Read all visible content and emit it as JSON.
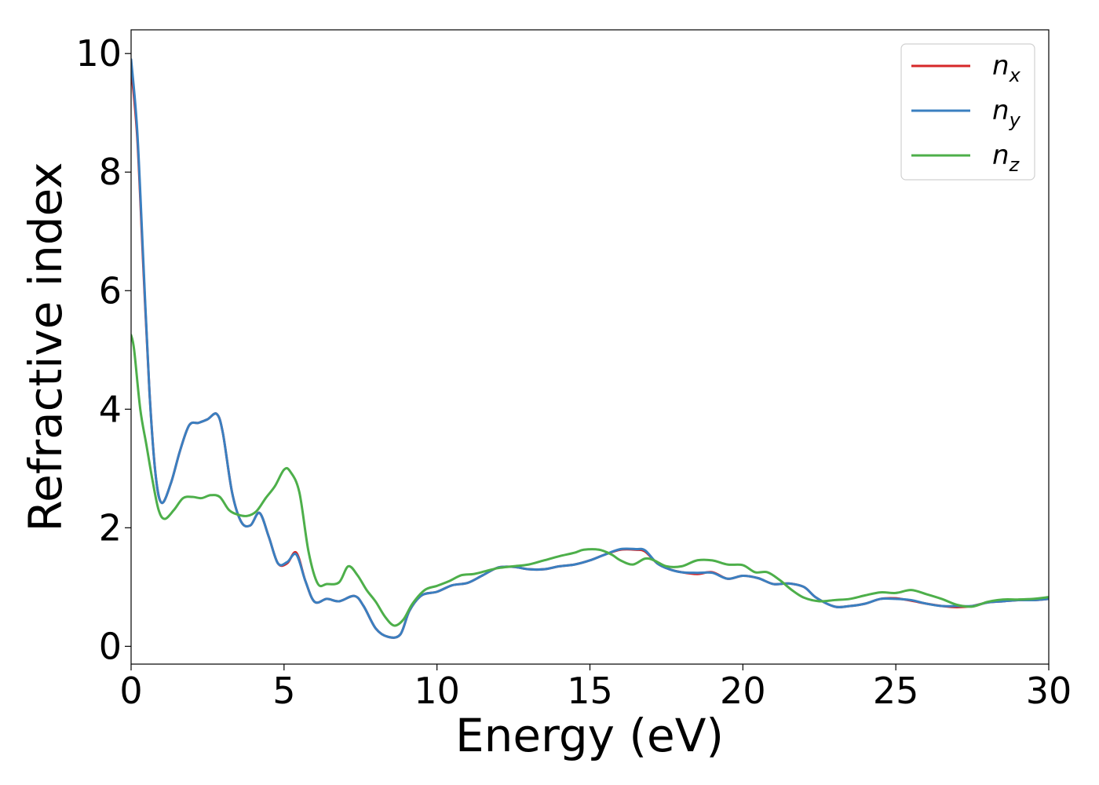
{
  "chart_data": {
    "type": "line",
    "xlabel": "Energy (eV)",
    "ylabel": "Refractive index",
    "xlim": [
      0,
      30
    ],
    "ylim": [
      -0.3,
      10.4
    ],
    "xticks": [
      0,
      5,
      10,
      15,
      20,
      25,
      30
    ],
    "yticks": [
      0,
      2,
      4,
      6,
      8,
      10
    ],
    "grid": false,
    "legend_position": "top-right",
    "series": [
      {
        "name": "n_x",
        "legend_base": "n",
        "legend_sub": "x",
        "color": "#d62728",
        "points": [
          [
            0,
            9.75
          ],
          [
            0.2,
            8.6
          ],
          [
            0.4,
            6.4
          ],
          [
            0.6,
            4.3
          ],
          [
            0.8,
            2.9
          ],
          [
            1,
            2.42
          ],
          [
            1.3,
            2.75
          ],
          [
            1.6,
            3.3
          ],
          [
            1.9,
            3.73
          ],
          [
            2.2,
            3.77
          ],
          [
            2.5,
            3.83
          ],
          [
            2.8,
            3.92
          ],
          [
            3.0,
            3.6
          ],
          [
            3.3,
            2.6
          ],
          [
            3.6,
            2.1
          ],
          [
            3.9,
            2.04
          ],
          [
            4.2,
            2.25
          ],
          [
            4.5,
            1.85
          ],
          [
            4.8,
            1.4
          ],
          [
            5.1,
            1.4
          ],
          [
            5.4,
            1.58
          ],
          [
            5.7,
            1.1
          ],
          [
            6.0,
            0.75
          ],
          [
            6.4,
            0.8
          ],
          [
            6.8,
            0.76
          ],
          [
            7.3,
            0.85
          ],
          [
            7.6,
            0.68
          ],
          [
            8.0,
            0.3
          ],
          [
            8.4,
            0.16
          ],
          [
            8.8,
            0.2
          ],
          [
            9.1,
            0.6
          ],
          [
            9.5,
            0.86
          ],
          [
            10,
            0.92
          ],
          [
            10.5,
            1.03
          ],
          [
            11,
            1.07
          ],
          [
            11.5,
            1.2
          ],
          [
            12,
            1.33
          ],
          [
            12.5,
            1.34
          ],
          [
            13,
            1.3
          ],
          [
            13.5,
            1.3
          ],
          [
            14,
            1.35
          ],
          [
            14.5,
            1.38
          ],
          [
            15,
            1.45
          ],
          [
            15.5,
            1.55
          ],
          [
            16,
            1.63
          ],
          [
            16.5,
            1.63
          ],
          [
            16.8,
            1.6
          ],
          [
            17.2,
            1.4
          ],
          [
            17.6,
            1.3
          ],
          [
            18,
            1.25
          ],
          [
            18.5,
            1.22
          ],
          [
            19,
            1.25
          ],
          [
            19.5,
            1.14
          ],
          [
            20,
            1.19
          ],
          [
            20.5,
            1.15
          ],
          [
            21,
            1.05
          ],
          [
            21.5,
            1.06
          ],
          [
            22,
            1.0
          ],
          [
            22.4,
            0.82
          ],
          [
            23,
            0.67
          ],
          [
            23.5,
            0.68
          ],
          [
            24,
            0.72
          ],
          [
            24.5,
            0.8
          ],
          [
            25,
            0.81
          ],
          [
            25.5,
            0.77
          ],
          [
            26,
            0.72
          ],
          [
            26.5,
            0.68
          ],
          [
            27,
            0.66
          ],
          [
            27.5,
            0.68
          ],
          [
            28,
            0.74
          ],
          [
            28.5,
            0.76
          ],
          [
            29,
            0.78
          ],
          [
            29.5,
            0.78
          ],
          [
            30,
            0.8
          ]
        ]
      },
      {
        "name": "n_y",
        "legend_base": "n",
        "legend_sub": "y",
        "color": "#3a7fc0",
        "points": [
          [
            0,
            9.9
          ],
          [
            0.2,
            8.7
          ],
          [
            0.4,
            6.5
          ],
          [
            0.6,
            4.3
          ],
          [
            0.8,
            2.9
          ],
          [
            1,
            2.42
          ],
          [
            1.3,
            2.75
          ],
          [
            1.6,
            3.3
          ],
          [
            1.9,
            3.73
          ],
          [
            2.2,
            3.77
          ],
          [
            2.5,
            3.83
          ],
          [
            2.8,
            3.92
          ],
          [
            3.0,
            3.6
          ],
          [
            3.3,
            2.6
          ],
          [
            3.6,
            2.1
          ],
          [
            3.9,
            2.04
          ],
          [
            4.2,
            2.25
          ],
          [
            4.5,
            1.85
          ],
          [
            4.8,
            1.4
          ],
          [
            5.1,
            1.42
          ],
          [
            5.4,
            1.55
          ],
          [
            5.7,
            1.1
          ],
          [
            6.0,
            0.75
          ],
          [
            6.4,
            0.8
          ],
          [
            6.8,
            0.76
          ],
          [
            7.3,
            0.85
          ],
          [
            7.6,
            0.68
          ],
          [
            8.0,
            0.3
          ],
          [
            8.4,
            0.16
          ],
          [
            8.8,
            0.2
          ],
          [
            9.1,
            0.6
          ],
          [
            9.5,
            0.86
          ],
          [
            10,
            0.92
          ],
          [
            10.5,
            1.03
          ],
          [
            11,
            1.07
          ],
          [
            11.5,
            1.2
          ],
          [
            12,
            1.33
          ],
          [
            12.5,
            1.34
          ],
          [
            13,
            1.3
          ],
          [
            13.5,
            1.3
          ],
          [
            14,
            1.35
          ],
          [
            14.5,
            1.38
          ],
          [
            15,
            1.45
          ],
          [
            15.5,
            1.55
          ],
          [
            16,
            1.64
          ],
          [
            16.5,
            1.64
          ],
          [
            16.8,
            1.62
          ],
          [
            17.2,
            1.4
          ],
          [
            17.6,
            1.3
          ],
          [
            18,
            1.25
          ],
          [
            18.5,
            1.24
          ],
          [
            19,
            1.24
          ],
          [
            19.5,
            1.14
          ],
          [
            20,
            1.19
          ],
          [
            20.5,
            1.15
          ],
          [
            21,
            1.05
          ],
          [
            21.5,
            1.06
          ],
          [
            22,
            1.0
          ],
          [
            22.4,
            0.82
          ],
          [
            23,
            0.67
          ],
          [
            23.5,
            0.68
          ],
          [
            24,
            0.72
          ],
          [
            24.5,
            0.8
          ],
          [
            25,
            0.8
          ],
          [
            25.5,
            0.78
          ],
          [
            26,
            0.72
          ],
          [
            26.5,
            0.68
          ],
          [
            27,
            0.68
          ],
          [
            27.5,
            0.68
          ],
          [
            28,
            0.74
          ],
          [
            28.5,
            0.76
          ],
          [
            29,
            0.78
          ],
          [
            29.5,
            0.78
          ],
          [
            30,
            0.8
          ]
        ]
      },
      {
        "name": "n_z",
        "legend_base": "n",
        "legend_sub": "z",
        "color": "#4daf4a",
        "points": [
          [
            0,
            5.25
          ],
          [
            0.1,
            5.0
          ],
          [
            0.3,
            4.0
          ],
          [
            0.5,
            3.4
          ],
          [
            0.7,
            2.8
          ],
          [
            0.9,
            2.3
          ],
          [
            1.1,
            2.15
          ],
          [
            1.4,
            2.3
          ],
          [
            1.7,
            2.5
          ],
          [
            2.0,
            2.52
          ],
          [
            2.3,
            2.5
          ],
          [
            2.6,
            2.55
          ],
          [
            2.9,
            2.52
          ],
          [
            3.2,
            2.3
          ],
          [
            3.5,
            2.22
          ],
          [
            3.8,
            2.2
          ],
          [
            4.1,
            2.28
          ],
          [
            4.4,
            2.5
          ],
          [
            4.7,
            2.7
          ],
          [
            5.0,
            2.98
          ],
          [
            5.2,
            2.95
          ],
          [
            5.5,
            2.6
          ],
          [
            5.8,
            1.6
          ],
          [
            6.1,
            1.06
          ],
          [
            6.4,
            1.05
          ],
          [
            6.8,
            1.08
          ],
          [
            7.1,
            1.35
          ],
          [
            7.4,
            1.2
          ],
          [
            7.7,
            0.95
          ],
          [
            8.0,
            0.75
          ],
          [
            8.3,
            0.5
          ],
          [
            8.6,
            0.35
          ],
          [
            8.9,
            0.45
          ],
          [
            9.2,
            0.72
          ],
          [
            9.6,
            0.95
          ],
          [
            10,
            1.02
          ],
          [
            10.4,
            1.1
          ],
          [
            10.8,
            1.2
          ],
          [
            11.2,
            1.22
          ],
          [
            11.6,
            1.27
          ],
          [
            12,
            1.32
          ],
          [
            12.5,
            1.35
          ],
          [
            13,
            1.38
          ],
          [
            13.5,
            1.45
          ],
          [
            14,
            1.52
          ],
          [
            14.5,
            1.58
          ],
          [
            14.8,
            1.63
          ],
          [
            15.3,
            1.63
          ],
          [
            15.7,
            1.55
          ],
          [
            16,
            1.45
          ],
          [
            16.4,
            1.38
          ],
          [
            16.8,
            1.48
          ],
          [
            17.1,
            1.45
          ],
          [
            17.5,
            1.35
          ],
          [
            18,
            1.35
          ],
          [
            18.5,
            1.45
          ],
          [
            19,
            1.45
          ],
          [
            19.5,
            1.38
          ],
          [
            20,
            1.37
          ],
          [
            20.4,
            1.25
          ],
          [
            20.8,
            1.25
          ],
          [
            21.2,
            1.12
          ],
          [
            21.6,
            0.95
          ],
          [
            22,
            0.82
          ],
          [
            22.5,
            0.76
          ],
          [
            23,
            0.78
          ],
          [
            23.5,
            0.8
          ],
          [
            24,
            0.86
          ],
          [
            24.5,
            0.91
          ],
          [
            25,
            0.9
          ],
          [
            25.5,
            0.95
          ],
          [
            26,
            0.88
          ],
          [
            26.5,
            0.8
          ],
          [
            27,
            0.7
          ],
          [
            27.5,
            0.67
          ],
          [
            28,
            0.75
          ],
          [
            28.5,
            0.79
          ],
          [
            29,
            0.79
          ],
          [
            29.5,
            0.8
          ],
          [
            30,
            0.83
          ]
        ]
      }
    ]
  }
}
